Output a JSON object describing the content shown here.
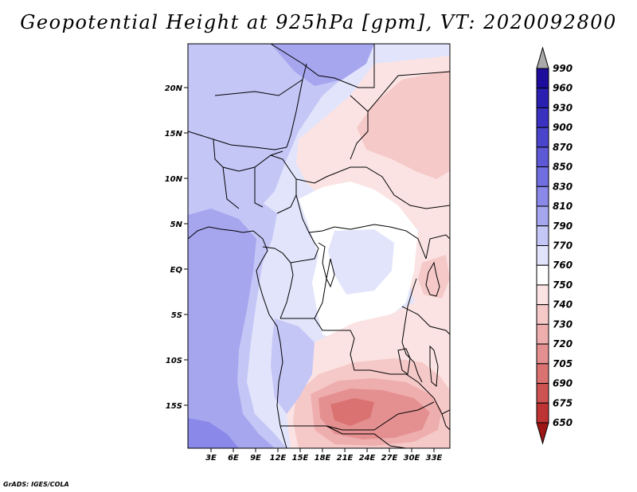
{
  "title": "Geopotential Height at 925hPa [gpm], VT: 2020092800",
  "credit": "GrADS: IGES/COLA",
  "map": {
    "lat_labels": [
      "20N",
      "15N",
      "10N",
      "5N",
      "EQ",
      "5S",
      "10S",
      "15S"
    ],
    "lon_labels": [
      "3E",
      "6E",
      "9E",
      "12E",
      "15E",
      "18E",
      "21E",
      "24E",
      "27E",
      "30E",
      "33E"
    ]
  },
  "colorbar": {
    "levels": [
      "990",
      "960",
      "930",
      "900",
      "870",
      "850",
      "830",
      "810",
      "790",
      "770",
      "760",
      "750",
      "740",
      "730",
      "720",
      "705",
      "690",
      "675",
      "650"
    ],
    "colors": [
      "#1e0c9c",
      "#2a1fb0",
      "#3a31c0",
      "#4a44cc",
      "#5c58d6",
      "#706ee0",
      "#8a88e8",
      "#a6a6ef",
      "#c4c6f6",
      "#e2e4fb",
      "#ffffff",
      "#fbe3e3",
      "#f6c9c9",
      "#efaeae",
      "#e59090",
      "#da7272",
      "#cd5252",
      "#be3434",
      "#a81d1d"
    ],
    "top_arrow_color": "#aaaaaa",
    "bottom_arrow_color": "#9c1616"
  },
  "regions": [
    {
      "name": "field-base",
      "color": "#e2e4fb"
    },
    {
      "name": "ne-warm",
      "color": "#fbe3e3"
    },
    {
      "name": "ne-warm-core",
      "color": "#f6c9c9"
    },
    {
      "name": "east-warm",
      "color": "#fbe3e3"
    },
    {
      "name": "central-neutral",
      "color": "#ffffff"
    },
    {
      "name": "congo-cool",
      "color": "#e2e4fb"
    },
    {
      "name": "south-warm",
      "color": "#fbe3e3"
    },
    {
      "name": "south-warm-mid",
      "color": "#f6c9c9"
    },
    {
      "name": "south-warm-strong",
      "color": "#efaeae"
    },
    {
      "name": "south-warm-core",
      "color": "#e59090"
    },
    {
      "name": "south-warm-peak",
      "color": "#da7272"
    },
    {
      "name": "lake-victoria-warm",
      "color": "#f6c9c9"
    },
    {
      "name": "north-cool",
      "color": "#c4c6f6"
    },
    {
      "name": "sahara-cool-top",
      "color": "#a6a6ef"
    },
    {
      "name": "gulf-cool",
      "color": "#c4c6f6"
    },
    {
      "name": "atlantic-cool",
      "color": "#a6a6ef"
    },
    {
      "name": "south-atlantic-cool",
      "color": "#c4c6f6"
    },
    {
      "name": "southwest-cool",
      "color": "#a6a6ef"
    },
    {
      "name": "far-southwest-cool",
      "color": "#8a88e8"
    }
  ]
}
